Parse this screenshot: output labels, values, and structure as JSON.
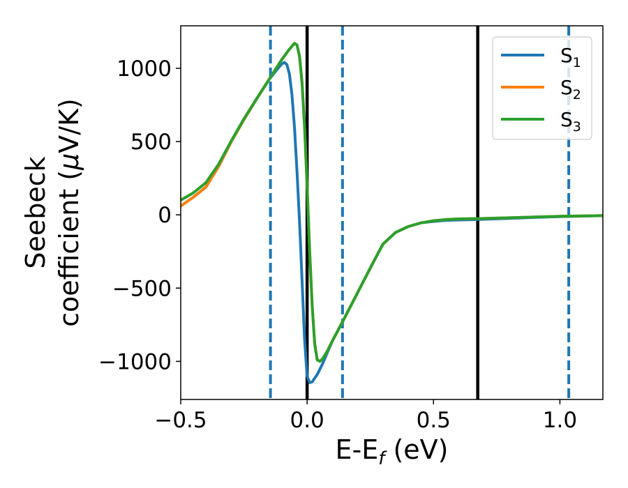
{
  "chart_data": {
    "type": "line",
    "title": "",
    "xlabel": "E-E",
    "xlabel_sub": "f",
    "xlabel_unit": " (eV)",
    "ylabel_line1": "Seebeck",
    "ylabel_line2_pre": "coefficient  (",
    "ylabel_mu": "μ",
    "ylabel_line2_post": "V/K)",
    "xlim": [
      -0.5,
      1.17
    ],
    "ylim": [
      -1260,
      1290
    ],
    "x_ticks": [
      -0.5,
      0.0,
      0.5,
      1.0
    ],
    "x_tick_labels": [
      "−0.5",
      "0.0",
      "0.5",
      "1.0"
    ],
    "y_ticks": [
      1000,
      500,
      0,
      -500,
      -1000
    ],
    "y_tick_labels": [
      "1000",
      "500",
      "0",
      "−500",
      "−1000"
    ],
    "grid": false,
    "legend_position": "top-right",
    "series": [
      {
        "name": "S",
        "sub": "1",
        "color": "#1f77b4",
        "x": [
          -0.5,
          -0.45,
          -0.4,
          -0.35,
          -0.3,
          -0.25,
          -0.2,
          -0.15,
          -0.12,
          -0.1,
          -0.09,
          -0.08,
          -0.07,
          -0.06,
          -0.05,
          -0.04,
          -0.03,
          -0.02,
          -0.01,
          0.0,
          0.01,
          0.02,
          0.04,
          0.06,
          0.08,
          0.1,
          0.14,
          0.2,
          0.26,
          0.3,
          0.35,
          0.4,
          0.45,
          0.5,
          0.55,
          0.6,
          0.65,
          0.7,
          0.8,
          0.9,
          1.0,
          1.17
        ],
        "y": [
          60,
          120,
          190,
          330,
          500,
          650,
          790,
          925,
          990,
          1030,
          1040,
          1025,
          960,
          820,
          600,
          300,
          -50,
          -450,
          -850,
          -1100,
          -1145,
          -1140,
          -1090,
          -1020,
          -940,
          -860,
          -730,
          -530,
          -330,
          -200,
          -120,
          -80,
          -55,
          -45,
          -38,
          -35,
          -33,
          -30,
          -24,
          -18,
          -12,
          -6
        ]
      },
      {
        "name": "S",
        "sub": "2",
        "color": "#ff7f0e",
        "x": [
          -0.5,
          -0.45,
          -0.4,
          -0.35,
          -0.3,
          -0.25,
          -0.2,
          -0.15,
          -0.1,
          -0.07,
          -0.05,
          -0.04,
          -0.03,
          -0.02,
          -0.01,
          0.0,
          0.01,
          0.02,
          0.03,
          0.04,
          0.05,
          0.06,
          0.08,
          0.1,
          0.14,
          0.2,
          0.26,
          0.3,
          0.35,
          0.4,
          0.45,
          0.5,
          0.55,
          0.6,
          0.7,
          0.8,
          0.9,
          1.0,
          1.17
        ],
        "y": [
          60,
          120,
          190,
          330,
          500,
          650,
          790,
          925,
          1060,
          1130,
          1170,
          1160,
          1080,
          900,
          600,
          200,
          -250,
          -620,
          -880,
          -990,
          -1000,
          -985,
          -930,
          -860,
          -730,
          -530,
          -330,
          -200,
          -120,
          -80,
          -55,
          -40,
          -32,
          -28,
          -25,
          -20,
          -15,
          -10,
          -5
        ]
      },
      {
        "name": "S",
        "sub": "3",
        "color": "#2ca02c",
        "x": [
          -0.5,
          -0.45,
          -0.4,
          -0.35,
          -0.3,
          -0.25,
          -0.2,
          -0.15,
          -0.1,
          -0.07,
          -0.05,
          -0.04,
          -0.03,
          -0.02,
          -0.01,
          0.0,
          0.01,
          0.02,
          0.03,
          0.04,
          0.05,
          0.06,
          0.08,
          0.1,
          0.14,
          0.2,
          0.26,
          0.3,
          0.35,
          0.4,
          0.45,
          0.5,
          0.55,
          0.6,
          0.7,
          0.8,
          0.9,
          1.0,
          1.17
        ],
        "y": [
          100,
          150,
          220,
          345,
          505,
          655,
          792,
          925,
          1060,
          1130,
          1170,
          1160,
          1080,
          900,
          600,
          200,
          -250,
          -620,
          -880,
          -990,
          -1000,
          -985,
          -930,
          -860,
          -730,
          -530,
          -330,
          -200,
          -120,
          -80,
          -55,
          -40,
          -32,
          -28,
          -25,
          -20,
          -15,
          -10,
          -5
        ]
      }
    ],
    "vlines": [
      {
        "x": -0.145,
        "style": "dashed",
        "color": "#1f77b4"
      },
      {
        "x": 0.0,
        "style": "solid",
        "color": "#000000"
      },
      {
        "x": 0.14,
        "style": "dashed",
        "color": "#1f77b4"
      },
      {
        "x": 0.675,
        "style": "solid",
        "color": "#000000"
      },
      {
        "x": 1.035,
        "style": "dashed",
        "color": "#1f77b4"
      }
    ]
  }
}
